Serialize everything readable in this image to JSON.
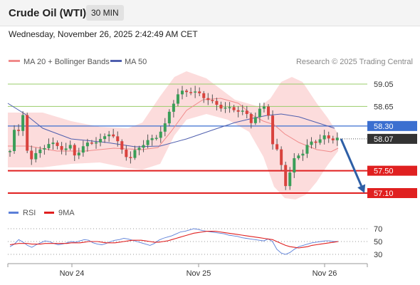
{
  "header": {
    "title": "Crude Oil (WTI)",
    "timeframe": "30 MIN",
    "datetime": "Wednesday, November 26, 2025 2:42:49 AM CET"
  },
  "legend": {
    "ma20_label": "MA 20 + Bollinger Bands",
    "ma50_label": "MA 50",
    "credit": "Research © 2025 Trading Central"
  },
  "rsi_legend": {
    "rsi_label": "RSI",
    "ma_label": "9MA"
  },
  "colors": {
    "bull": "#3a9e58",
    "bear": "#d9433e",
    "bollinger_fill": "#fbd6d6",
    "ma20": "#f08a8a",
    "ma50": "#4f5fae",
    "resistance_green": "#9acd6a",
    "pivot_blue": "#3b6fd0",
    "support_red": "#e02020",
    "price_tag": "#333333",
    "arrow": "#2e5fa6",
    "rsi": "#5b7fd8",
    "rsi_ma": "#e02020"
  },
  "chart_data": [
    {
      "type": "candlestick",
      "x_ticks": [
        "Nov 24",
        "Nov 25",
        "Nov 26"
      ],
      "levels": [
        {
          "value": 59.05,
          "label": "59.05",
          "style": "resistance"
        },
        {
          "value": 58.65,
          "label": "58.65",
          "style": "resistance"
        },
        {
          "value": 58.3,
          "label": "58.30",
          "style": "pivot"
        },
        {
          "value": 57.5,
          "label": "57.50",
          "style": "support"
        },
        {
          "value": 57.1,
          "label": "57.10",
          "style": "support"
        }
      ],
      "last_price": {
        "value": 58.07,
        "label": "58.07"
      },
      "forecast_arrow": {
        "from": 58.07,
        "to": 57.1
      }
    },
    {
      "type": "line",
      "series": [
        {
          "name": "RSI",
          "values": [
            42,
            46,
            53,
            49,
            44,
            41,
            45,
            48,
            51,
            50,
            47,
            45,
            46,
            48,
            50,
            49,
            51,
            53,
            52,
            48,
            46,
            45,
            47,
            50,
            52,
            53,
            55,
            54,
            52,
            50,
            48,
            46,
            44,
            47,
            52,
            55,
            57,
            59,
            62,
            65,
            66,
            68,
            70,
            69,
            67,
            66,
            65,
            64,
            63,
            62,
            60,
            59,
            58,
            56,
            55,
            54,
            53,
            52,
            51,
            54,
            50,
            38,
            32,
            30,
            33,
            38,
            42,
            44,
            46,
            48,
            49,
            50,
            51,
            51,
            50,
            50
          ]
        },
        {
          "name": "9MA",
          "values": [
            45,
            46,
            47,
            47,
            47,
            46,
            46,
            46,
            47,
            47,
            47,
            47,
            47,
            47,
            48,
            48,
            48,
            49,
            50,
            50,
            50,
            49,
            48,
            48,
            48,
            49,
            50,
            51,
            52,
            52,
            52,
            51,
            50,
            49,
            49,
            50,
            51,
            53,
            55,
            57,
            59,
            61,
            63,
            64,
            65,
            66,
            66,
            66,
            65,
            64,
            63,
            62,
            61,
            60,
            59,
            58,
            57,
            56,
            55,
            54,
            53,
            50,
            47,
            44,
            42,
            41,
            40,
            41,
            42,
            44,
            45,
            46,
            47,
            48,
            49,
            50
          ]
        }
      ],
      "ylim": [
        20,
        80
      ],
      "y_ticks": [
        "70",
        "50",
        "30"
      ]
    }
  ]
}
